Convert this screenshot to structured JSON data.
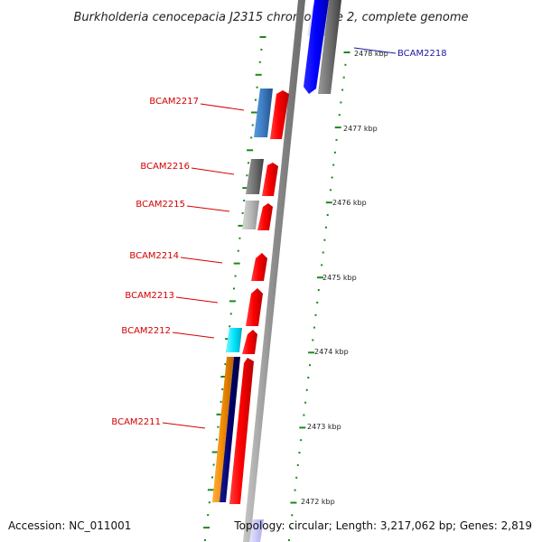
{
  "title": "Burkholderia cenocepacia J2315 chromosome 2, complete genome",
  "footer": {
    "accession": "Accession: NC_011001",
    "topology": "Topology: circular; Length: 3,217,062 bp; Genes: 2,819"
  },
  "genes": [
    {
      "label": "BCAM2218",
      "color_strip": "#0000ff",
      "kbp_hint": 2478
    },
    {
      "label": "BCAM2217",
      "color_strip": "#3b7bbf"
    },
    {
      "label": "BCAM2216",
      "color_strip": "#606060"
    },
    {
      "label": "BCAM2215",
      "color_strip": "#b0b0b0"
    },
    {
      "label": "BCAM2214"
    },
    {
      "label": "BCAM2213"
    },
    {
      "label": "BCAM2212",
      "color_strip": "#00e5ff"
    },
    {
      "label": "BCAM2211",
      "color_strip": "#f08a00"
    }
  ],
  "ticks": [
    "2478 kbp",
    "2477 kbp",
    "2476 kbp",
    "2475 kbp",
    "2474 kbp",
    "2473 kbp",
    "2472 kbp"
  ],
  "colors": {
    "gene_red": "#ff0000",
    "label_red": "#d40000",
    "label_blue": "#1a1aa6",
    "backbone": "#8c8c8c",
    "tick_green": "#1a8a1a"
  }
}
